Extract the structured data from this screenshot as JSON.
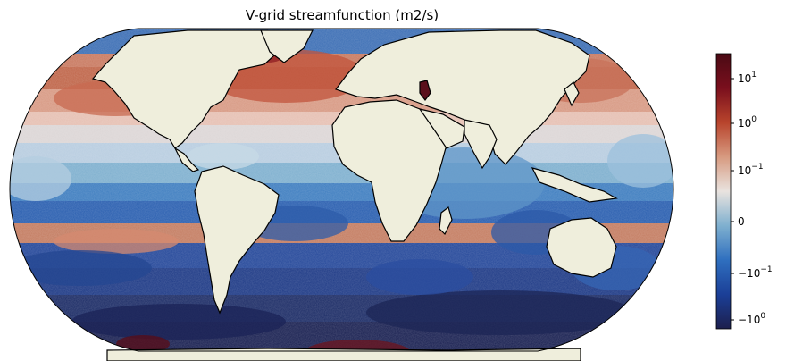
{
  "title": "V-grid streamfunction (m2/s)",
  "projection": "Robinson (global)",
  "land_color": "#efeedc",
  "coastline_color": "#000000",
  "colormap": {
    "name": "diverging (balance)",
    "scale": "symlog",
    "stops": [
      "#1c1f4d",
      "#1b3f97",
      "#2f6fbf",
      "#7fb0cf",
      "#e9e3df",
      "#d79a80",
      "#b8442c",
      "#7a0f1d",
      "#4a0a14"
    ]
  },
  "colorbar": {
    "ticks": [
      {
        "base": "10",
        "exp": "1"
      },
      {
        "base": "10",
        "exp": "0"
      },
      {
        "base": "10",
        "exp": "−1"
      },
      {
        "base": "0",
        "exp": ""
      },
      {
        "base": "−10",
        "exp": "−1"
      },
      {
        "base": "−10",
        "exp": "0"
      }
    ]
  }
}
